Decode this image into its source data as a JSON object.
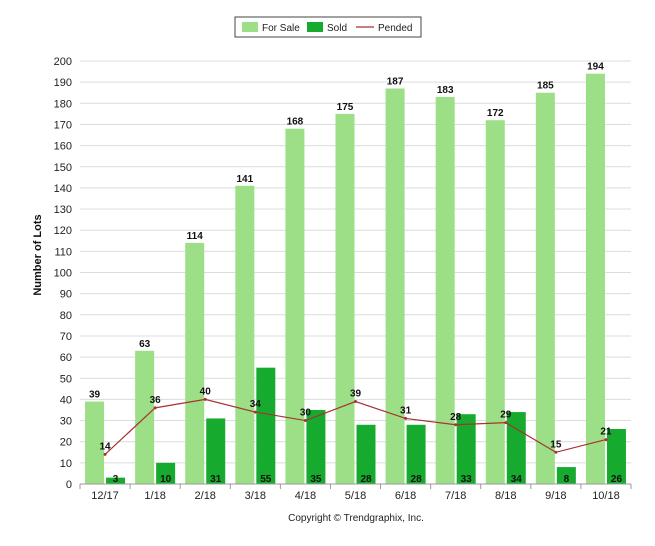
{
  "chart_data": {
    "type": "bar",
    "categories": [
      "12/17",
      "1/18",
      "2/18",
      "3/18",
      "4/18",
      "5/18",
      "6/18",
      "7/18",
      "8/18",
      "9/18",
      "10/18"
    ],
    "series": [
      {
        "name": "For Sale",
        "type": "bar",
        "color": "#9ddf86",
        "values": [
          39,
          63,
          114,
          141,
          168,
          175,
          187,
          183,
          172,
          185,
          194
        ]
      },
      {
        "name": "Sold",
        "type": "bar",
        "color": "#16ab2f",
        "values": [
          3,
          10,
          31,
          55,
          35,
          28,
          28,
          33,
          34,
          8,
          26
        ]
      },
      {
        "name": "Pended",
        "type": "line",
        "color": "#a83232",
        "values": [
          14,
          36,
          40,
          34,
          30,
          39,
          31,
          28,
          29,
          15,
          21
        ]
      }
    ],
    "ylabel": "Number of Lots",
    "xlabel": "",
    "ylim": [
      0,
      200
    ],
    "ytick_step": 10,
    "grid": true,
    "legend_position": "top-center"
  },
  "footer": {
    "copyright": "Copyright © Trendgraphix, Inc."
  }
}
